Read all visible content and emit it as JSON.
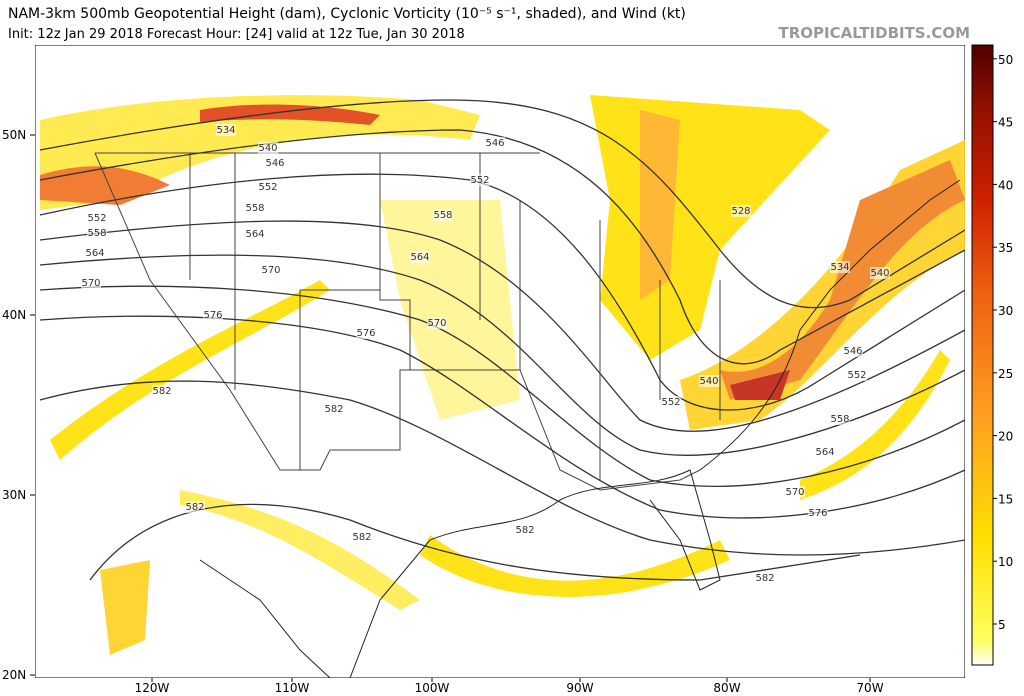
{
  "header": {
    "title": "NAM-3km 500mb Geopotential Height (dam), Cyclonic Vorticity (10⁻⁵ s⁻¹, shaded), and Wind (kt)",
    "subtitle": "Init: 12z Jan 29 2018   Forecast Hour: [24]   valid at 12z Tue, Jan 30 2018",
    "brand": "TROPICALTIDBITS.COM"
  },
  "map": {
    "lat_labels": [
      "50N",
      "40N",
      "30N",
      "20N"
    ],
    "lon_labels": [
      "120W",
      "110W",
      "100W",
      "90W",
      "80W",
      "70W"
    ],
    "contour_labels": [
      "534",
      "540",
      "546",
      "552",
      "558",
      "564",
      "570",
      "576",
      "582",
      "546",
      "552",
      "558",
      "564",
      "570",
      "576",
      "582",
      "582",
      "582",
      "582",
      "552",
      "558",
      "564",
      "570",
      "528",
      "534",
      "540",
      "546",
      "552",
      "558",
      "564",
      "570",
      "576",
      "582",
      "540",
      "552"
    ]
  },
  "colorbar": {
    "ticks": [
      "5",
      "10",
      "15",
      "20",
      "25",
      "30",
      "35",
      "40",
      "45",
      "50"
    ]
  }
}
